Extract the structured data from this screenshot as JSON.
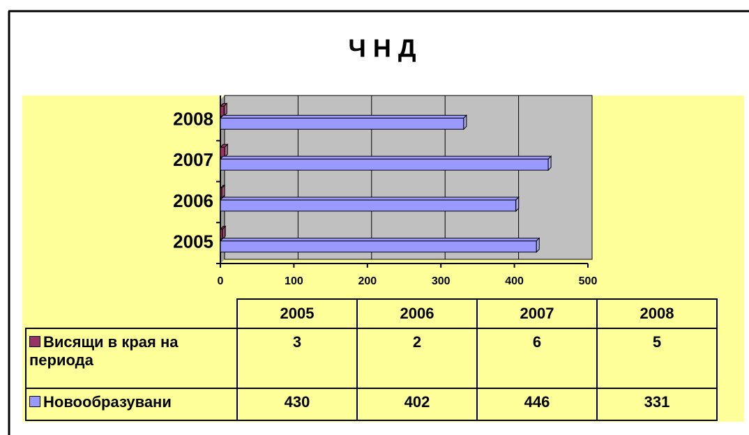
{
  "chart_data": {
    "type": "bar",
    "orientation": "horizontal",
    "title": "Ч Н Д",
    "categories": [
      "2005",
      "2006",
      "2007",
      "2008"
    ],
    "series": [
      {
        "name": "Висящи в края на периода",
        "color": "#993366",
        "values": [
          3,
          2,
          6,
          5
        ]
      },
      {
        "name": "Новообразувани",
        "color": "#9999ff",
        "values": [
          430,
          402,
          446,
          331
        ]
      }
    ],
    "xlim": [
      0,
      500
    ],
    "xticks": [
      0,
      100,
      200,
      300,
      400,
      500
    ],
    "grid": true,
    "data_table": true
  }
}
